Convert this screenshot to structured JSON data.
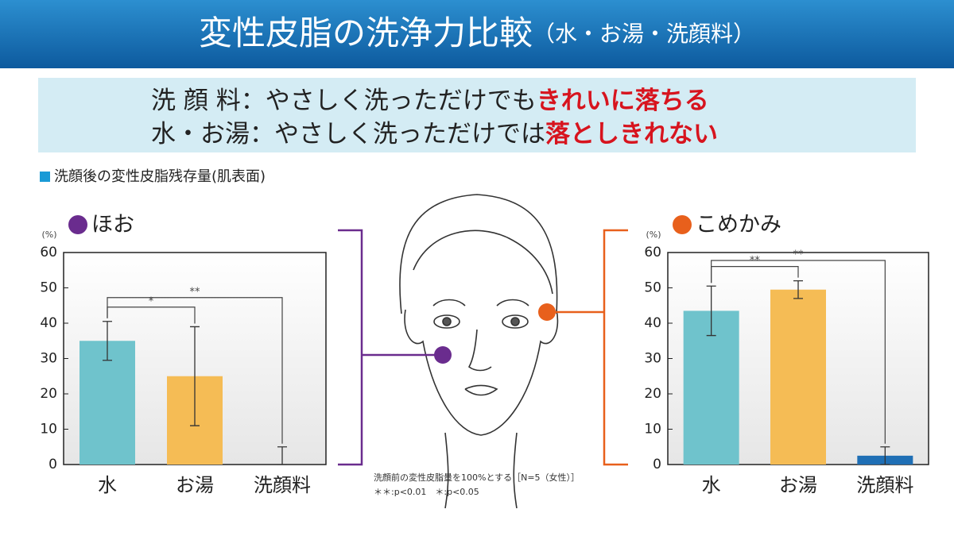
{
  "header": {
    "title": "変性皮脂の洗浄力比較",
    "subtitle": "（水・お湯・洗顔料）"
  },
  "headline": [
    {
      "label": "洗 顔 料",
      "text": "：やさしく洗っただけでも",
      "emphasis": "きれいに落ちる"
    },
    {
      "label": "水・お湯",
      "text": "：やさしく洗っただけでは",
      "emphasis": "落としきれない"
    }
  ],
  "section_label": "洗顔後の変性皮脂残存量(肌表面)",
  "notes": [
    "洗顔前の変性皮脂量を100%とする［N=5（女性）］",
    "＊＊:p<0.01　＊:p<0.05"
  ],
  "chart_data": [
    {
      "type": "bar",
      "title": "ほお",
      "title_color": "#6a2c8e",
      "ylabel": "(%)",
      "categories": [
        "水",
        "お湯",
        "洗顔料"
      ],
      "values": [
        35,
        25,
        0
      ],
      "errors": [
        5.5,
        14,
        5
      ],
      "colors": [
        "#6fc3cc",
        "#f5bc55",
        "#1f6fb5"
      ],
      "ylim": [
        0,
        60
      ],
      "yticks": [
        0,
        10,
        20,
        30,
        40,
        50,
        60
      ],
      "annotations": [
        {
          "text": "*",
          "between": [
            "水",
            "お湯"
          ]
        },
        {
          "text": "**",
          "between": [
            "水",
            "洗顔料"
          ]
        }
      ]
    },
    {
      "type": "bar",
      "title": "こめかみ",
      "title_color": "#e8601c",
      "ylabel": "(%)",
      "categories": [
        "水",
        "お湯",
        "洗顔料"
      ],
      "values": [
        43.5,
        49.5,
        2.5
      ],
      "errors": [
        7,
        2.5,
        2.5
      ],
      "colors": [
        "#6fc3cc",
        "#f5bc55",
        "#1f6fb5"
      ],
      "ylim": [
        0,
        60
      ],
      "yticks": [
        0,
        10,
        20,
        30,
        40,
        50,
        60
      ],
      "annotations": [
        {
          "text": "**",
          "between": [
            "水",
            "お湯"
          ]
        },
        {
          "text": "**",
          "between": [
            "水",
            "洗顔料"
          ]
        }
      ]
    }
  ]
}
